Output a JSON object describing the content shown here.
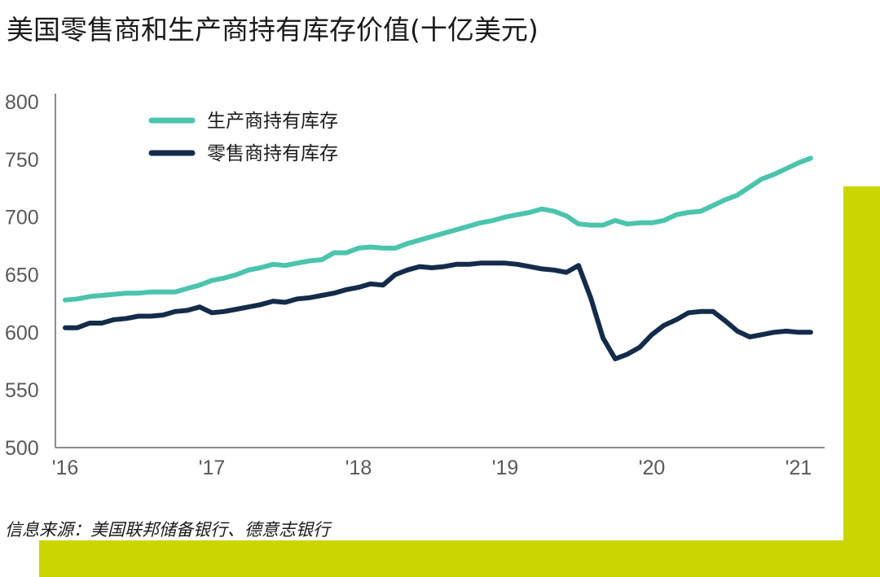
{
  "title": "美国零售商和生产商持有库存价值(十亿美元)",
  "source": "信息来源：美国联邦储备银行、德意志银行",
  "colors": {
    "producer": "#4cc4ad",
    "retailer": "#142c4a",
    "accent": "#cbd600",
    "axis": "#8c8c8c"
  },
  "chart_data": {
    "type": "line",
    "title": "美国零售商和生产商持有库存价值(十亿美元)",
    "xlabel": "",
    "ylabel": "",
    "ylim": [
      500,
      800
    ],
    "yticks": [
      "800",
      "750",
      "700",
      "650",
      "600",
      "550",
      "500"
    ],
    "xticks": [
      "'16",
      "'17",
      "'18",
      "'19",
      "'20",
      "'21"
    ],
    "xrange": [
      2016.0,
      2021.0833
    ],
    "legend_position": "top-left",
    "grid": false,
    "series": [
      {
        "name": "生产商持有库存",
        "color": "#4cc4ad",
        "x": [
          2016.0,
          2016.083,
          2016.167,
          2016.25,
          2016.333,
          2016.417,
          2016.5,
          2016.583,
          2016.667,
          2016.75,
          2016.833,
          2016.917,
          2017.0,
          2017.083,
          2017.167,
          2017.25,
          2017.333,
          2017.417,
          2017.5,
          2017.583,
          2017.667,
          2017.75,
          2017.833,
          2017.917,
          2018.0,
          2018.083,
          2018.167,
          2018.25,
          2018.333,
          2018.417,
          2018.5,
          2018.583,
          2018.667,
          2018.75,
          2018.833,
          2018.917,
          2019.0,
          2019.083,
          2019.167,
          2019.25,
          2019.333,
          2019.417,
          2019.5,
          2019.583,
          2019.667,
          2019.75,
          2019.833,
          2019.917,
          2020.0,
          2020.083,
          2020.167,
          2020.25,
          2020.333,
          2020.417,
          2020.5,
          2020.583,
          2020.667,
          2020.75,
          2020.833,
          2020.917,
          2021.0,
          2021.083
        ],
        "values": [
          628,
          629,
          631,
          632,
          633,
          634,
          634,
          635,
          635,
          635,
          638,
          641,
          645,
          647,
          650,
          654,
          656,
          659,
          658,
          660,
          662,
          663,
          669,
          669,
          673,
          674,
          673,
          673,
          677,
          680,
          683,
          686,
          689,
          692,
          695,
          697,
          700,
          702,
          704,
          707,
          705,
          701,
          694,
          693,
          693,
          697,
          694,
          695,
          695,
          697,
          702,
          704,
          705,
          710,
          715,
          719,
          726,
          733,
          737,
          742,
          747,
          751
        ]
      },
      {
        "name": "零售商持有库存",
        "color": "#142c4a",
        "x": [
          2016.0,
          2016.083,
          2016.167,
          2016.25,
          2016.333,
          2016.417,
          2016.5,
          2016.583,
          2016.667,
          2016.75,
          2016.833,
          2016.917,
          2017.0,
          2017.083,
          2017.167,
          2017.25,
          2017.333,
          2017.417,
          2017.5,
          2017.583,
          2017.667,
          2017.75,
          2017.833,
          2017.917,
          2018.0,
          2018.083,
          2018.167,
          2018.25,
          2018.333,
          2018.417,
          2018.5,
          2018.583,
          2018.667,
          2018.75,
          2018.833,
          2018.917,
          2019.0,
          2019.083,
          2019.167,
          2019.25,
          2019.333,
          2019.417,
          2019.5,
          2019.583,
          2019.667,
          2019.75,
          2019.833,
          2019.917,
          2020.0,
          2020.083,
          2020.167,
          2020.25,
          2020.333,
          2020.417,
          2020.5,
          2020.583,
          2020.667,
          2020.75,
          2020.833,
          2020.917,
          2021.0,
          2021.083
        ],
        "values": [
          604,
          604,
          608,
          608,
          611,
          612,
          614,
          614,
          615,
          618,
          619,
          622,
          617,
          618,
          620,
          622,
          624,
          627,
          626,
          629,
          630,
          632,
          634,
          637,
          639,
          642,
          641,
          650,
          654,
          657,
          656,
          657,
          659,
          659,
          660,
          660,
          660,
          659,
          657,
          655,
          654,
          652,
          658,
          630,
          595,
          577,
          581,
          587,
          598,
          606,
          611,
          617,
          618,
          618,
          610,
          601,
          596,
          598,
          600,
          601,
          600,
          600
        ]
      }
    ]
  }
}
